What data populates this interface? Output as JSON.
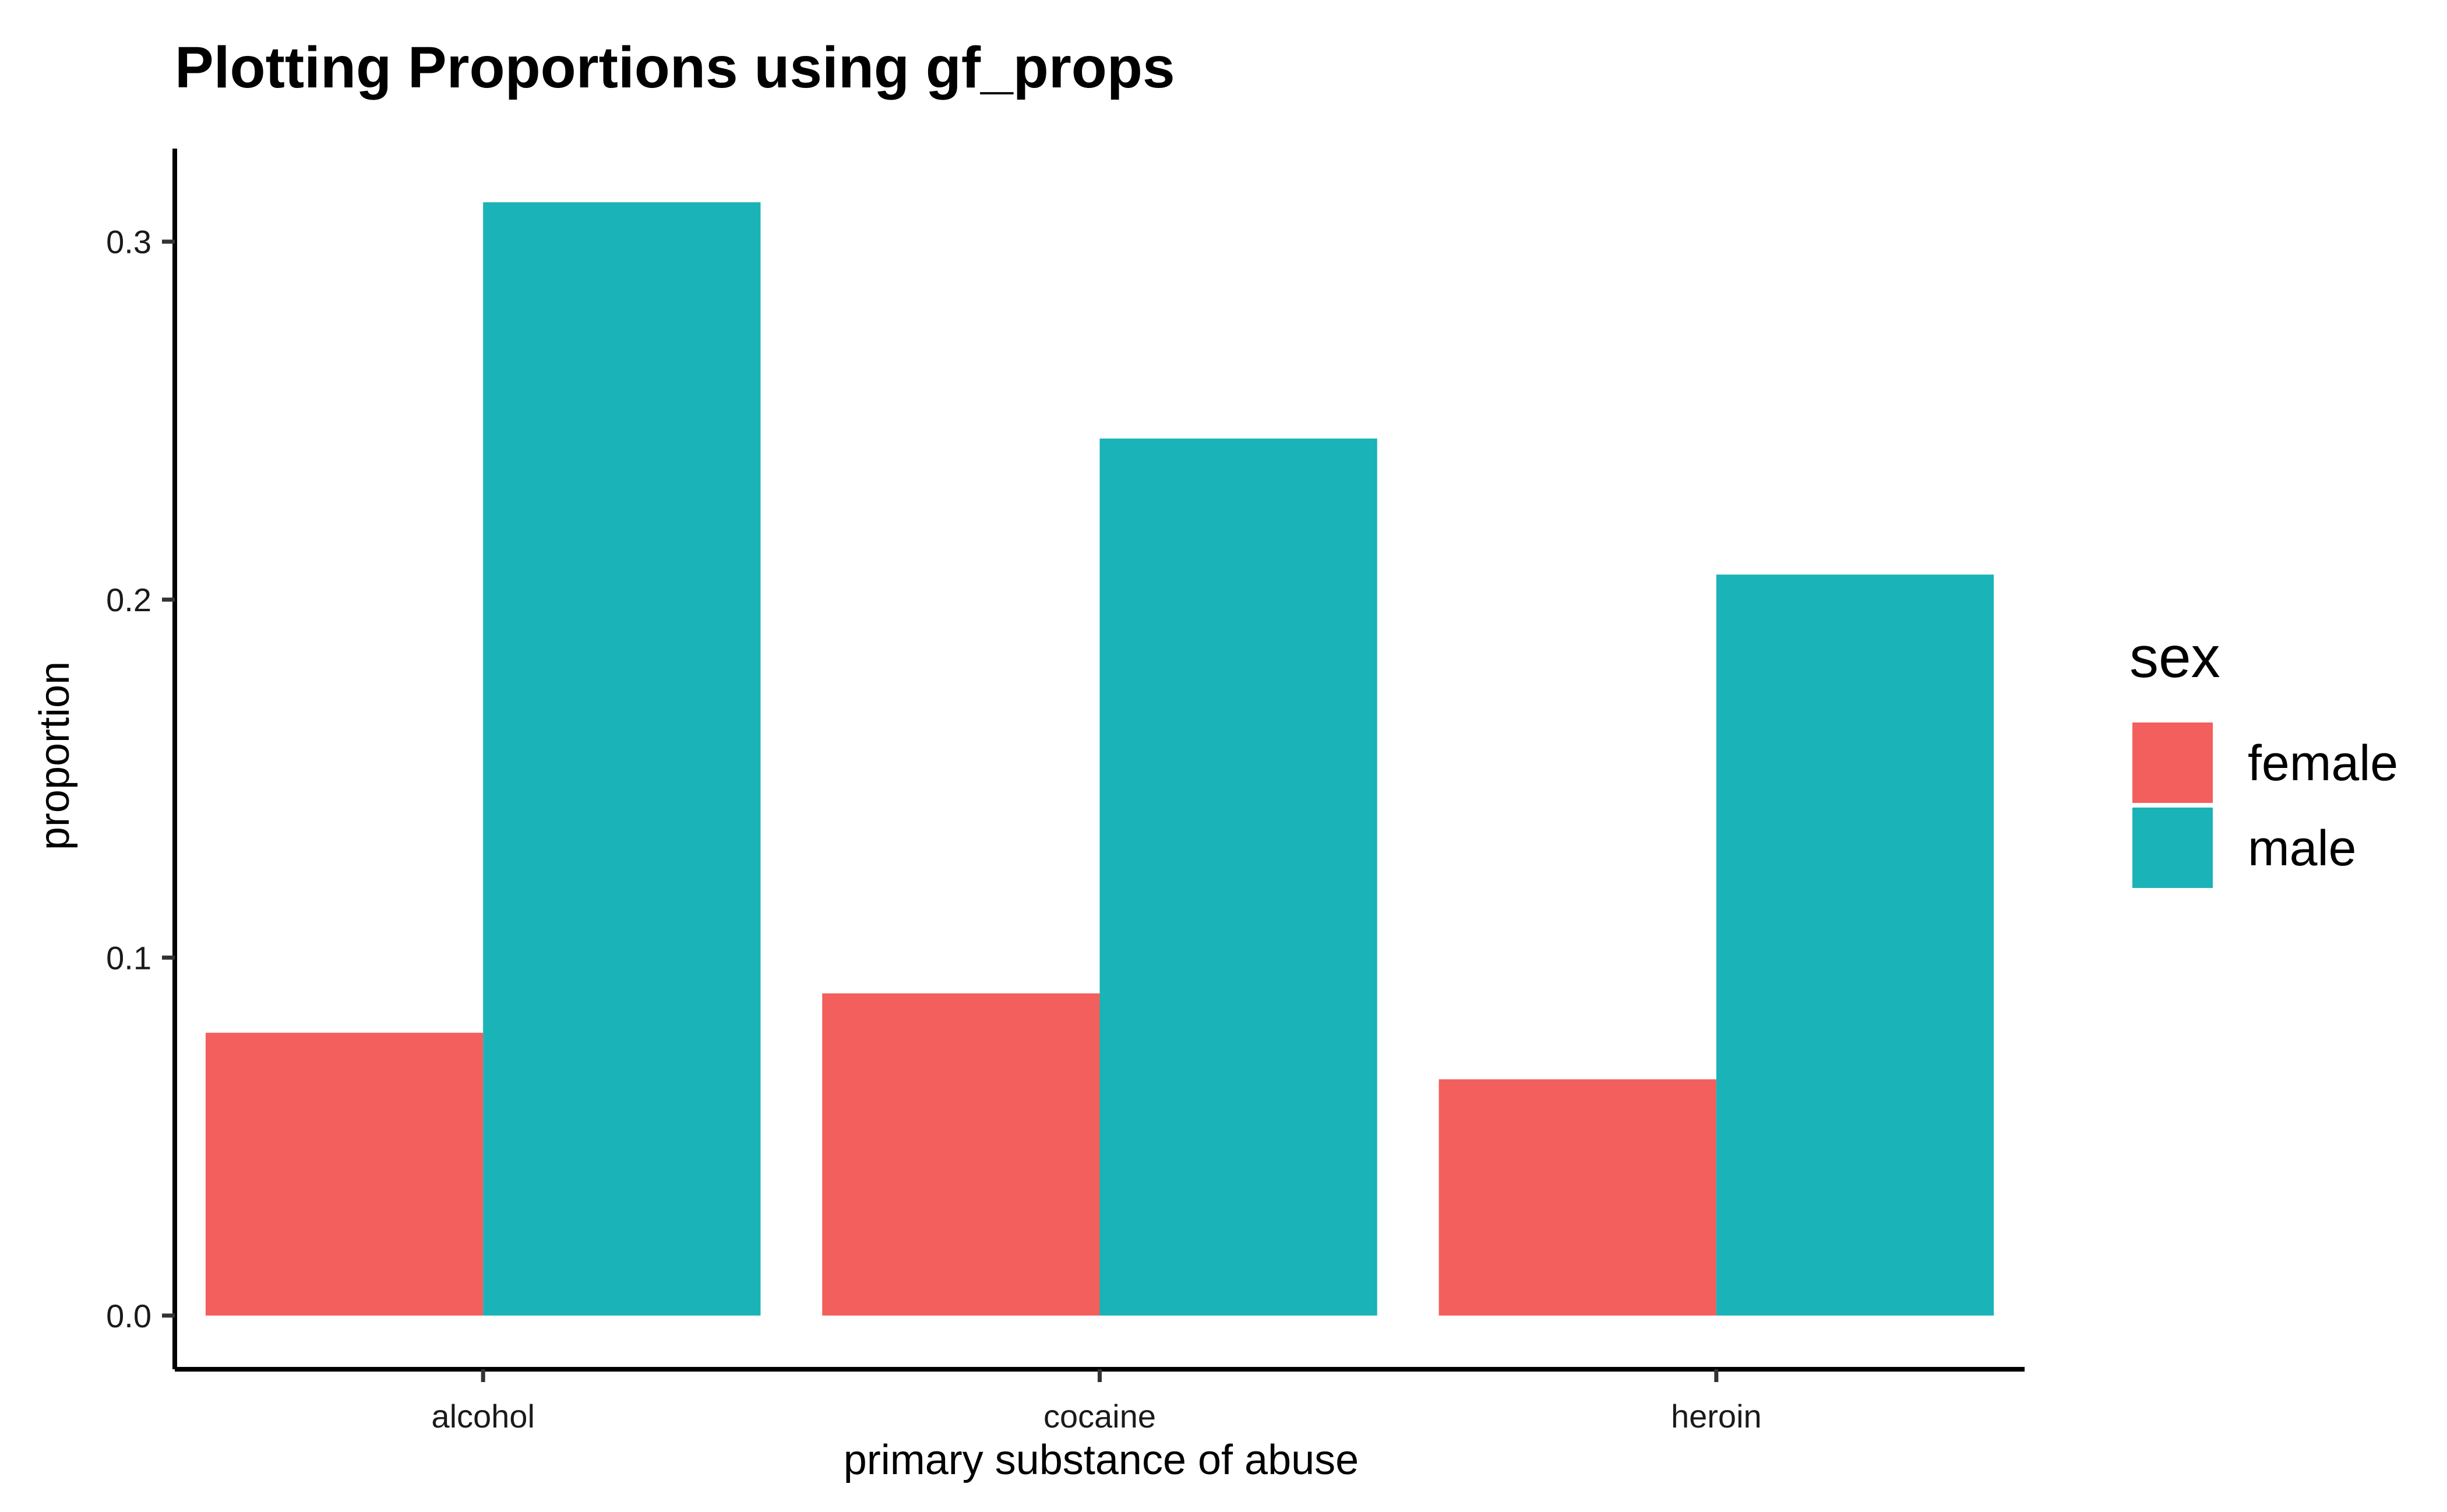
{
  "chart_data": {
    "type": "bar",
    "title": "Plotting Proportions using gf_props",
    "xlabel": "primary substance of abuse",
    "ylabel": "proportion",
    "categories": [
      "alcohol",
      "cocaine",
      "heroin"
    ],
    "series": [
      {
        "name": "female",
        "color": "#F25F5C",
        "values": [
          0.079,
          0.09,
          0.066
        ]
      },
      {
        "name": "male",
        "color": "#1AB3B7",
        "values": [
          0.311,
          0.245,
          0.207
        ]
      }
    ],
    "ylim": [
      -0.015,
      0.326
    ],
    "yticks": [
      0.0,
      0.1,
      0.2,
      0.3
    ],
    "ytick_labels": [
      "0.0",
      "0.1",
      "0.2",
      "0.3"
    ],
    "legend": {
      "title": "sex",
      "position": "right"
    },
    "grid": false,
    "bar_layout": "dodge"
  }
}
